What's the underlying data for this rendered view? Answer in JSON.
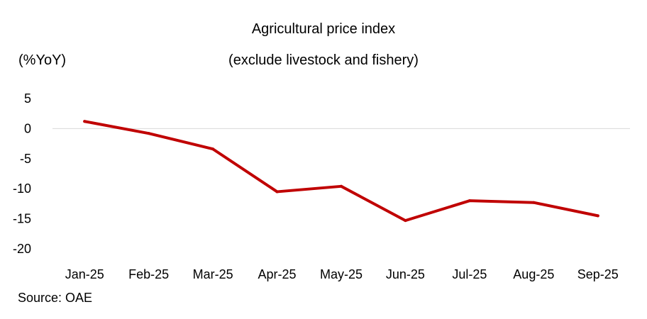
{
  "chart_data": {
    "type": "line",
    "title": "Agricultural price index",
    "subtitle": "(exclude livestock and fishery)",
    "ylabel": "(%YoY)",
    "categories": [
      "Jan-25",
      "Feb-25",
      "Mar-25",
      "Apr-25",
      "May-25",
      "Jun-25",
      "Jul-25",
      "Aug-25",
      "Sep-25"
    ],
    "series": [
      {
        "values": [
          1.2,
          -0.8,
          -3.4,
          -10.5,
          -9.6,
          -15.3,
          -12.0,
          -12.3,
          -14.5
        ],
        "color": "#C00000"
      }
    ],
    "y_ticks": [
      "5",
      "0",
      "-5",
      "-10",
      "-15",
      "-20"
    ],
    "ylim": [
      -20,
      5
    ],
    "grid": false,
    "zero_line": true,
    "source": "Source: OAE"
  }
}
